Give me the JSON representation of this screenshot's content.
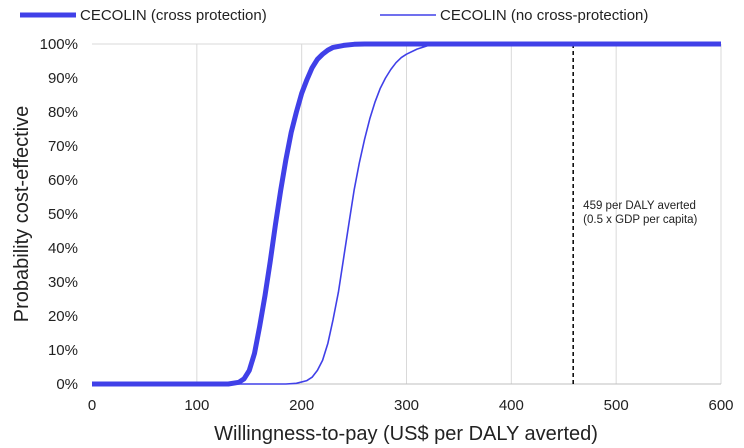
{
  "chart_data": {
    "type": "line",
    "xlabel": "Willingness-to-pay (US$ per DALY averted)",
    "ylabel": "Probability cost-effective",
    "xlim": [
      0,
      600
    ],
    "ylim": [
      0,
      1
    ],
    "x_ticks": [
      0,
      100,
      200,
      300,
      400,
      500,
      600
    ],
    "y_ticks": [
      "0%",
      "10%",
      "20%",
      "30%",
      "40%",
      "50%",
      "60%",
      "70%",
      "80%",
      "90%",
      "100%"
    ],
    "grid": "vertical",
    "legend_position": "top",
    "series_color": "#4040e8",
    "series": [
      {
        "name": "CECOLIN (cross protection)",
        "style": "thick",
        "points": [
          [
            0,
            0
          ],
          [
            130,
            0
          ],
          [
            140,
            0.005
          ],
          [
            145,
            0.015
          ],
          [
            150,
            0.04
          ],
          [
            155,
            0.09
          ],
          [
            160,
            0.17
          ],
          [
            165,
            0.26
          ],
          [
            170,
            0.36
          ],
          [
            175,
            0.47
          ],
          [
            180,
            0.57
          ],
          [
            185,
            0.66
          ],
          [
            190,
            0.74
          ],
          [
            195,
            0.8
          ],
          [
            200,
            0.855
          ],
          [
            205,
            0.895
          ],
          [
            210,
            0.93
          ],
          [
            215,
            0.955
          ],
          [
            220,
            0.97
          ],
          [
            225,
            0.982
          ],
          [
            230,
            0.99
          ],
          [
            240,
            0.996
          ],
          [
            250,
            0.999
          ],
          [
            260,
            1.0
          ],
          [
            600,
            1.0
          ]
        ]
      },
      {
        "name": "CECOLIN (no cross-protection)",
        "style": "thin",
        "points": [
          [
            0,
            0
          ],
          [
            185,
            0
          ],
          [
            195,
            0.002
          ],
          [
            205,
            0.01
          ],
          [
            210,
            0.02
          ],
          [
            215,
            0.04
          ],
          [
            220,
            0.07
          ],
          [
            225,
            0.12
          ],
          [
            230,
            0.19
          ],
          [
            235,
            0.27
          ],
          [
            240,
            0.37
          ],
          [
            245,
            0.47
          ],
          [
            250,
            0.57
          ],
          [
            255,
            0.65
          ],
          [
            260,
            0.72
          ],
          [
            265,
            0.78
          ],
          [
            270,
            0.83
          ],
          [
            275,
            0.87
          ],
          [
            280,
            0.9
          ],
          [
            285,
            0.925
          ],
          [
            290,
            0.945
          ],
          [
            295,
            0.96
          ],
          [
            300,
            0.97
          ],
          [
            310,
            0.985
          ],
          [
            320,
            0.995
          ],
          [
            330,
            1.0
          ],
          [
            600,
            1.0
          ]
        ]
      }
    ],
    "reference_line": {
      "x": 459,
      "label_lines": [
        "459 per DALY averted",
        "(0.5 x GDP per capita)"
      ]
    }
  }
}
